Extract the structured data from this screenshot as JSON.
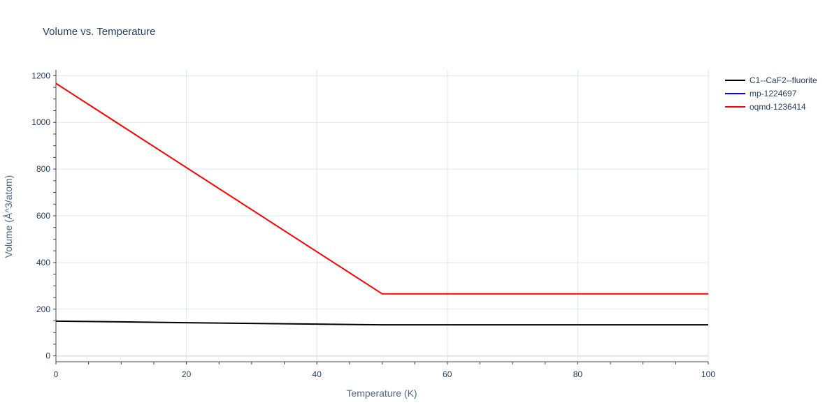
{
  "chart_data": {
    "type": "line",
    "title": "Volume vs. Temperature",
    "xlabel": "Temperature (K)",
    "ylabel": "Volume (Å^3/atom)",
    "xlim": [
      0,
      100
    ],
    "ylim": [
      -25,
      1225
    ],
    "xticks": [
      0,
      20,
      40,
      60,
      80,
      100
    ],
    "yticks": [
      0,
      200,
      400,
      600,
      800,
      1000,
      1200
    ],
    "grid": true,
    "legend_position": "top-right",
    "series": [
      {
        "name": "C1--CaF2--fluorite",
        "color": "#000000",
        "x": [
          0,
          10,
          20,
          30,
          40,
          50,
          60,
          70,
          80,
          90,
          100
        ],
        "y": [
          149,
          146,
          142,
          139,
          136,
          133,
          133,
          133,
          133,
          133,
          133
        ]
      },
      {
        "name": "mp-1224697",
        "color": "#0000ff",
        "x": [],
        "y": []
      },
      {
        "name": "oqmd-1236414",
        "color": "#ff0000",
        "x": [
          0,
          50,
          60,
          70,
          80,
          90,
          100
        ],
        "y": [
          1167,
          266,
          266,
          266,
          266,
          266,
          266
        ]
      }
    ]
  }
}
